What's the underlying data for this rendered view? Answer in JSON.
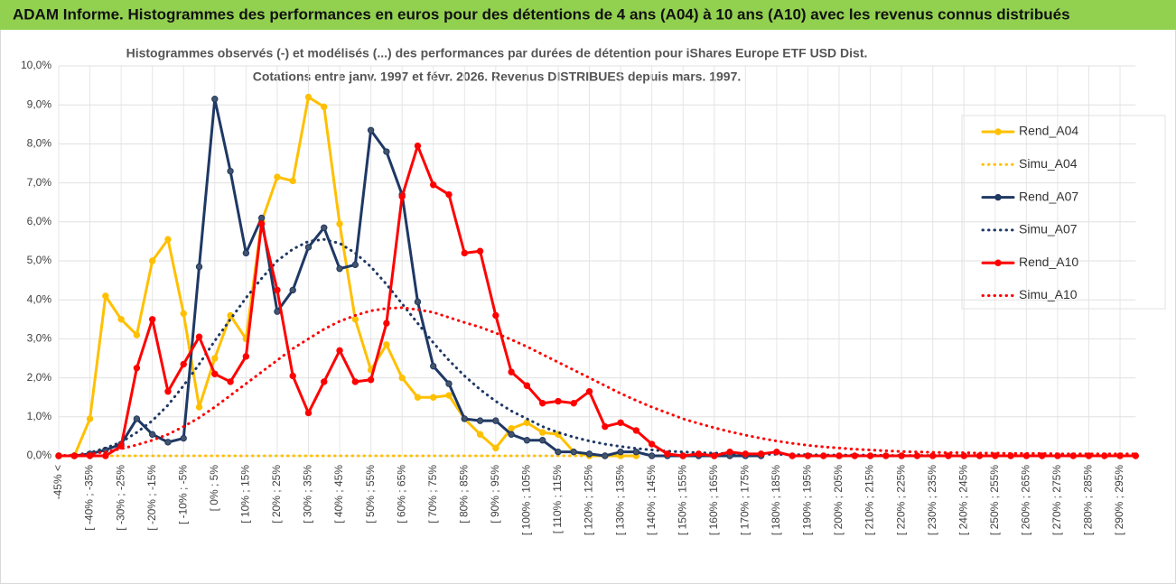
{
  "chart_data": {
    "type": "line",
    "title": "ADAM Informe. Histogrammes des performances en euros pour des détentions de 4 ans (A04) à 10 ans (A10) avec les revenus connus distribués",
    "subtitle": [
      "Histogrammes observés (-) et modélisés (...) des performances par durées de détention pour iShares Europe ETF USD Dist.",
      "Cotations entre janv. 1997 et févr. 2026. Revenus DISTRIBUES depuis mars. 1997."
    ],
    "categories": [
      "-45% <",
      null,
      "[ -40% ; -35%",
      null,
      "[ -30% ; -25%",
      null,
      "[ -20% ; -15%",
      null,
      "[ -10% ; -5%",
      null,
      "[ 0% ; 5%",
      null,
      "[ 10% ; 15%",
      null,
      "[ 20% ; 25%",
      null,
      "[ 30% ; 35%",
      null,
      "[ 40% ; 45%",
      null,
      "[ 50% ; 55%",
      null,
      "[ 60% ; 65%",
      null,
      "[ 70% ; 75%",
      null,
      "[ 80% ; 85%",
      null,
      "[ 90% ; 95%",
      null,
      "[ 100% ; 105%",
      null,
      "[ 110% ; 115%",
      null,
      "[ 120% ; 125%",
      null,
      "[ 130% ; 135%",
      null,
      "[ 140% ; 145%",
      null,
      "[ 150% ; 155%",
      null,
      "[ 160% ; 165%",
      null,
      "[ 170% ; 175%",
      null,
      "[ 180% ; 185%",
      null,
      "[ 190% ; 195%",
      null,
      "[ 200% ; 205%",
      null,
      "[ 210% ; 215%",
      null,
      "[ 220% ; 225%",
      null,
      "[ 230% ; 235%",
      null,
      "[ 240% ; 245%",
      null,
      "[ 250% ; 255%",
      null,
      "[ 260% ; 265%",
      null,
      "[ 270% ; 275%",
      null,
      "[ 280% ; 285%",
      null,
      "[ 290% ; 295%",
      null
    ],
    "ylim": [
      0,
      10
    ],
    "yticks": [
      {
        "value": 0,
        "label": "0,0%"
      },
      {
        "value": 1,
        "label": "1,0%"
      },
      {
        "value": 2,
        "label": "2,0%"
      },
      {
        "value": 3,
        "label": "3,0%"
      },
      {
        "value": 4,
        "label": "4,0%"
      },
      {
        "value": 5,
        "label": "5,0%"
      },
      {
        "value": 6,
        "label": "6,0%"
      },
      {
        "value": 7,
        "label": "7,0%"
      },
      {
        "value": 8,
        "label": "8,0%"
      },
      {
        "value": 9,
        "label": "9,0%"
      },
      {
        "value": 10,
        "label": "10,0%"
      }
    ],
    "grid": true,
    "legend": "right",
    "series": [
      {
        "name": "Rend_A04",
        "color": "#ffc000",
        "style": "solid",
        "markers": true,
        "values": [
          0,
          0,
          0.95,
          4.1,
          3.5,
          3.1,
          5.0,
          5.55,
          3.65,
          1.25,
          2.5,
          3.6,
          3.0,
          6.0,
          7.15,
          7.05,
          9.2,
          8.95,
          5.95,
          3.5,
          2.2,
          2.85,
          2.0,
          1.5,
          1.5,
          1.55,
          0.95,
          0.55,
          0.2,
          0.7,
          0.85,
          0.6,
          0.55,
          0.1,
          0,
          0,
          0,
          0,
          null,
          null,
          null,
          null,
          null,
          null,
          null,
          null,
          null,
          null,
          null,
          null,
          null,
          null,
          null,
          null,
          null,
          null,
          null,
          null,
          null,
          null,
          null,
          null,
          null,
          null,
          null,
          null,
          null,
          null,
          null,
          null
        ]
      },
      {
        "name": "Simu_A04",
        "color": "#ffc000",
        "style": "dotted",
        "markers": false,
        "values": [
          0,
          0,
          0,
          0,
          0,
          0,
          0,
          0,
          0,
          0,
          0,
          0,
          0,
          0,
          0,
          0,
          0,
          0,
          0,
          0,
          0,
          0,
          0,
          0,
          0,
          0,
          0,
          0,
          0,
          0,
          0,
          0,
          0,
          0,
          0,
          null,
          null,
          null,
          null,
          null,
          null,
          null,
          null,
          null,
          null,
          null,
          null,
          null,
          null,
          null,
          null,
          null,
          null,
          null,
          null,
          null,
          null,
          null,
          null,
          null,
          null,
          null,
          null,
          null,
          null,
          null,
          null,
          null,
          null,
          null
        ]
      },
      {
        "name": "Rend_A07",
        "color": "#1f3864",
        "style": "solid",
        "markers": true,
        "values": [
          0,
          0,
          0.05,
          0.15,
          0.3,
          0.95,
          0.55,
          0.35,
          0.45,
          4.85,
          9.15,
          7.3,
          5.2,
          6.1,
          3.7,
          4.25,
          5.35,
          5.85,
          4.8,
          4.9,
          8.35,
          7.8,
          6.7,
          3.95,
          2.3,
          1.85,
          0.95,
          0.9,
          0.9,
          0.55,
          0.4,
          0.4,
          0.1,
          0.1,
          0.05,
          0,
          0.1,
          0.1,
          0,
          0,
          0,
          0,
          0,
          0,
          0,
          0,
          null,
          null,
          null,
          null,
          null,
          null,
          null,
          null,
          null,
          null,
          null,
          null,
          null,
          null,
          null,
          null,
          null,
          null,
          null,
          null,
          null,
          null,
          null,
          null
        ]
      },
      {
        "name": "Simu_A07",
        "color": "#1f3864",
        "style": "dotted",
        "markers": false,
        "values": [
          0,
          0.02,
          0.08,
          0.2,
          0.35,
          0.6,
          0.9,
          1.3,
          1.8,
          2.35,
          2.95,
          3.5,
          4.05,
          4.55,
          5.0,
          5.3,
          5.5,
          5.55,
          5.45,
          5.2,
          4.85,
          4.4,
          3.9,
          3.4,
          2.9,
          2.45,
          2.05,
          1.7,
          1.4,
          1.15,
          0.95,
          0.75,
          0.6,
          0.48,
          0.38,
          0.3,
          0.24,
          0.19,
          0.15,
          0.12,
          0.1,
          0.08,
          0.07,
          0.06,
          0.05,
          0.04,
          0.04,
          0.03,
          0.03,
          0.02,
          0.02,
          0.02,
          0.02,
          0.01,
          0.01,
          0.01,
          0.01,
          0.01,
          0.01,
          0.01,
          0,
          0,
          0,
          0,
          0,
          0,
          0,
          0,
          0,
          0
        ]
      },
      {
        "name": "Rend_A10",
        "color": "#ff0000",
        "style": "solid",
        "markers": true,
        "values": [
          0,
          0,
          0,
          0,
          0.25,
          2.25,
          3.5,
          1.65,
          2.35,
          3.05,
          2.1,
          1.9,
          2.55,
          5.95,
          4.25,
          2.05,
          1.1,
          1.9,
          2.7,
          1.9,
          1.95,
          3.4,
          6.65,
          7.95,
          6.95,
          6.7,
          5.2,
          5.25,
          3.6,
          2.15,
          1.8,
          1.35,
          1.4,
          1.35,
          1.65,
          0.75,
          0.85,
          0.65,
          0.3,
          0.05,
          0,
          0.05,
          0,
          0.1,
          0.05,
          0.05,
          0.1,
          0,
          0,
          0,
          0,
          0,
          0,
          0,
          0,
          0,
          0,
          0,
          0,
          0,
          0,
          0,
          0,
          0,
          0,
          0,
          0,
          0,
          0,
          0
        ]
      },
      {
        "name": "Simu_A10",
        "color": "#ff0000",
        "style": "dotted",
        "markers": false,
        "values": [
          0,
          0.02,
          0.05,
          0.1,
          0.18,
          0.28,
          0.4,
          0.55,
          0.75,
          0.98,
          1.25,
          1.55,
          1.85,
          2.15,
          2.45,
          2.75,
          3.0,
          3.25,
          3.45,
          3.6,
          3.72,
          3.78,
          3.8,
          3.75,
          3.68,
          3.55,
          3.42,
          3.3,
          3.15,
          2.98,
          2.8,
          2.6,
          2.4,
          2.2,
          2.0,
          1.8,
          1.6,
          1.42,
          1.25,
          1.1,
          0.95,
          0.83,
          0.72,
          0.62,
          0.53,
          0.45,
          0.38,
          0.32,
          0.27,
          0.23,
          0.2,
          0.17,
          0.15,
          0.13,
          0.11,
          0.1,
          0.09,
          0.08,
          0.08,
          0.07,
          0.07,
          0.06,
          0.06,
          0.06,
          0.05,
          0.05,
          0.05,
          0.05,
          0.05,
          0.05
        ]
      }
    ]
  }
}
